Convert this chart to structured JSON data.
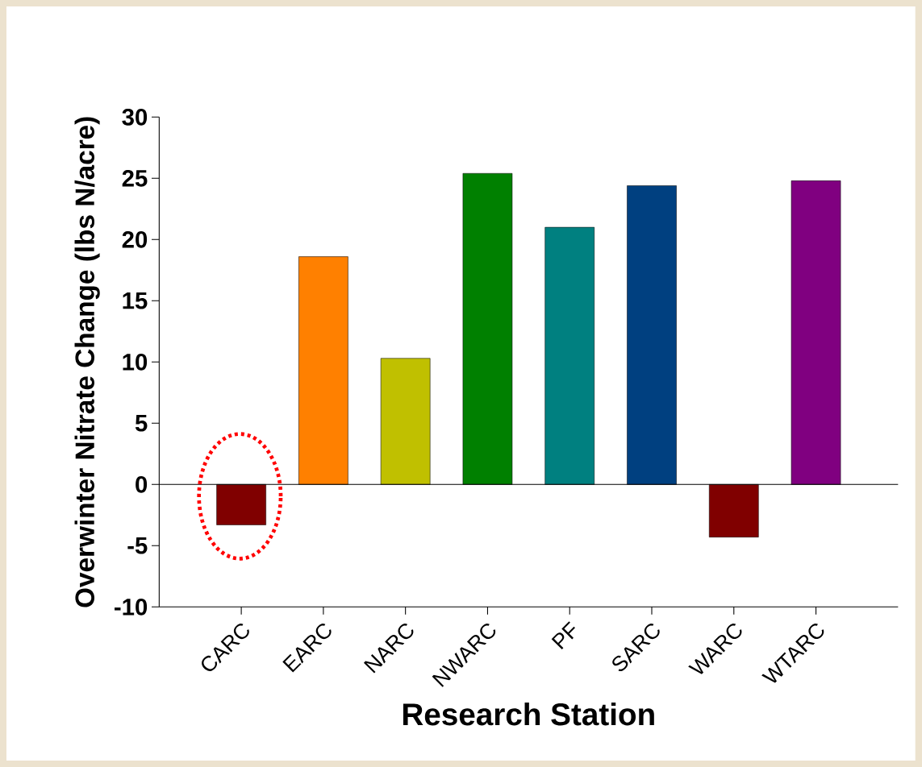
{
  "chart_data": {
    "type": "bar",
    "xlabel": "Research Station",
    "ylabel": "Overwinter Nitrate Change (lbs N/acre)",
    "categories": [
      "CARC",
      "EARC",
      "NARC",
      "NWARC",
      "PF",
      "SARC",
      "WARC",
      "WTARC"
    ],
    "values": [
      -3.3,
      18.6,
      10.3,
      25.4,
      21.0,
      24.4,
      -4.3,
      24.8
    ],
    "colors": [
      "#800000",
      "#ff8000",
      "#c0c000",
      "#008000",
      "#008080",
      "#004080",
      "#800000",
      "#800080"
    ],
    "ylim": [
      -10,
      30
    ],
    "yticks": [
      -10,
      -5,
      0,
      5,
      10,
      15,
      20,
      25,
      30
    ],
    "ref_lines": [
      {
        "axis": "y",
        "value": 0,
        "color": "#000000"
      }
    ],
    "grid": false
  }
}
